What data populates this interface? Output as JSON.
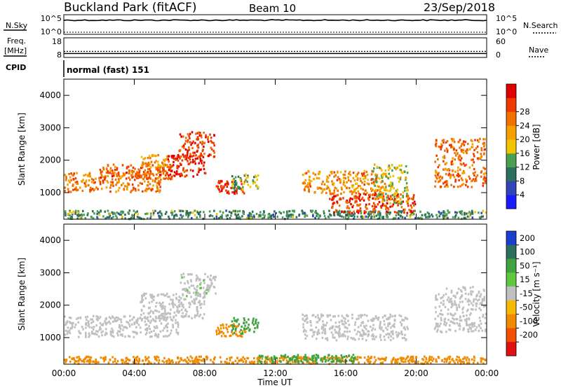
{
  "header": {
    "title": "Buckland Park (fitACF)",
    "beam": "Beam 10",
    "date": "23/Sep/2018"
  },
  "status_panels": {
    "nsky_label": "N.Sky",
    "nsky_top_tick": "10^5",
    "nsky_bottom_tick": "10^0",
    "nsearch_label": "N.Search",
    "nsearch_top_tick": "10^5",
    "nsearch_bottom_tick": "10^0",
    "freq_label": "Freq.",
    "freq_unit": "[MHz]",
    "freq_top_tick": "18",
    "freq_bottom_tick": "8",
    "nave_label": "Nave",
    "nave_top_tick": "60",
    "nave_bottom_tick": "0",
    "cpid_label": "CPID",
    "cpid_text": "normal (fast) 151"
  },
  "colors": {
    "power_scale": [
      "#1a1aff",
      "#2f45b8",
      "#2e6e5c",
      "#4aa04f",
      "#f2c400",
      "#f5a000",
      "#f07000",
      "#ee3a00",
      "#e00000"
    ],
    "velocity_scale": [
      "#1a3fcf",
      "#2e6e5c",
      "#3fa33f",
      "#60c840",
      "#c0c0c0",
      "#f4b900",
      "#f08a00",
      "#f05000",
      "#e01010"
    ]
  },
  "chart_data": [
    {
      "type": "heatmap",
      "panel": "power",
      "ylabel": "Slant Range [km]",
      "yticks": [
        1000,
        2000,
        3000,
        4000
      ],
      "ylim": [
        180,
        4500
      ],
      "xlim": [
        0,
        24
      ],
      "colorbar_label": "Power [dB]",
      "colorbar_ticks": [
        4,
        8,
        12,
        16,
        20,
        24,
        28
      ],
      "colorbar_range": [
        0,
        30
      ],
      "regions": [
        {
          "t0": 0.0,
          "t1": 24.0,
          "r0": 200,
          "r1": 480,
          "value": 10
        },
        {
          "t0": 0.0,
          "t1": 5.5,
          "r0": 1050,
          "r1": 1650,
          "value": 21
        },
        {
          "t0": 2.0,
          "t1": 6.2,
          "r0": 1450,
          "r1": 1900,
          "value": 23
        },
        {
          "t0": 4.3,
          "t1": 6.0,
          "r0": 1800,
          "r1": 2200,
          "value": 19
        },
        {
          "t0": 5.8,
          "t1": 8.0,
          "r0": 1500,
          "r1": 2200,
          "value": 27
        },
        {
          "t0": 6.5,
          "t1": 8.5,
          "r0": 2100,
          "r1": 2900,
          "value": 25
        },
        {
          "t0": 8.6,
          "t1": 10.3,
          "r0": 1000,
          "r1": 1400,
          "value": 26
        },
        {
          "t0": 9.5,
          "t1": 11.0,
          "r0": 1100,
          "r1": 1600,
          "value": 12
        },
        {
          "t0": 13.5,
          "t1": 18.3,
          "r0": 1000,
          "r1": 1700,
          "value": 20
        },
        {
          "t0": 15.0,
          "t1": 20.0,
          "r0": 400,
          "r1": 1000,
          "value": 25
        },
        {
          "t0": 17.5,
          "t1": 19.5,
          "r0": 700,
          "r1": 1900,
          "value": 15
        },
        {
          "t0": 21.0,
          "t1": 24.0,
          "r0": 1200,
          "r1": 2700,
          "value": 22
        }
      ]
    },
    {
      "type": "heatmap",
      "panel": "velocity",
      "ylabel": "Slant Range [km]",
      "yticks": [
        1000,
        2000,
        3000,
        4000
      ],
      "ylim": [
        180,
        4500
      ],
      "xlim": [
        0,
        24
      ],
      "xticks": [
        "00:00",
        "04:00",
        "08:00",
        "12:00",
        "16:00",
        "20:00",
        "00:00"
      ],
      "xlabel": "Time UT",
      "colorbar_label": "Velocity [m s⁻¹]",
      "colorbar_ticks": [
        200,
        100,
        50,
        15,
        -15,
        -50,
        -100,
        -200
      ],
      "regions": [
        {
          "t0": 0.0,
          "t1": 24.0,
          "r0": 200,
          "r1": 450,
          "value": -40
        },
        {
          "t0": 11.0,
          "t1": 16.5,
          "r0": 250,
          "r1": 500,
          "value": 40
        },
        {
          "t0": 0.0,
          "t1": 6.5,
          "r0": 1050,
          "r1": 1700,
          "value": 0
        },
        {
          "t0": 4.3,
          "t1": 8.0,
          "r0": 1600,
          "r1": 2400,
          "value": 0
        },
        {
          "t0": 6.5,
          "t1": 8.6,
          "r0": 2300,
          "r1": 3000,
          "value": 5
        },
        {
          "t0": 8.6,
          "t1": 10.3,
          "r0": 1050,
          "r1": 1450,
          "value": -40
        },
        {
          "t0": 9.5,
          "t1": 11.0,
          "r0": 1150,
          "r1": 1650,
          "value": 40
        },
        {
          "t0": 13.5,
          "t1": 19.5,
          "r0": 950,
          "r1": 1750,
          "value": 0
        },
        {
          "t0": 21.0,
          "t1": 24.0,
          "r0": 1200,
          "r1": 2600,
          "value": 0
        }
      ]
    }
  ],
  "nsky_level": 0.72,
  "freq_level": 0.2
}
